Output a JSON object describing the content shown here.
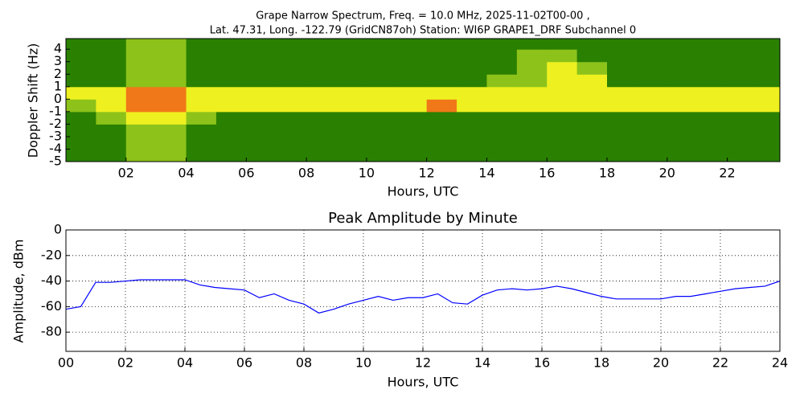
{
  "chart_data": [
    {
      "type": "heatmap",
      "title": [
        "Grape Narrow Spectrum, Freq. = 10.0 MHz, 2025-11-02T00-00 ,",
        "Lat.  47.31, Long. -122.79 (GridCN87oh) Station: WI6P GRAPE1_DRF Subchannel 0"
      ],
      "xlabel": "Hours, UTC",
      "ylabel": "Doppler Shift (Hz)",
      "xlim": [
        0,
        23.75
      ],
      "ylim": [
        -5,
        4.85
      ],
      "xticks": [
        {
          "value": 2,
          "label": "02"
        },
        {
          "value": 4,
          "label": "04"
        },
        {
          "value": 6,
          "label": "06"
        },
        {
          "value": 8,
          "label": "08"
        },
        {
          "value": 10,
          "label": "10"
        },
        {
          "value": 12,
          "label": "12"
        },
        {
          "value": 14,
          "label": "14"
        },
        {
          "value": 16,
          "label": "16"
        },
        {
          "value": 18,
          "label": "18"
        },
        {
          "value": 20,
          "label": "20"
        },
        {
          "value": 22,
          "label": "22"
        }
      ],
      "yticks": [
        -5,
        -4,
        -3,
        -2,
        -1,
        0,
        1,
        2,
        3,
        4
      ],
      "x_bins": [
        0,
        1,
        2,
        3,
        4,
        5,
        6,
        7,
        8,
        9,
        10,
        11,
        12,
        13,
        14,
        15,
        16,
        17,
        18,
        19,
        20,
        21,
        22,
        23,
        24
      ],
      "y_bins": [
        -5,
        -4,
        -3,
        -2,
        -1,
        0,
        1,
        2,
        3,
        4,
        5
      ],
      "colors": [
        "#2a8000",
        "#8cc21a",
        "#eef020",
        "#f07818"
      ],
      "z": [
        [
          0,
          0,
          1,
          1,
          0,
          0,
          0,
          0,
          0,
          0,
          0,
          0,
          0,
          0,
          0,
          0,
          0,
          0,
          0,
          0,
          0,
          0,
          0,
          0
        ],
        [
          0,
          0,
          1,
          1,
          0,
          0,
          0,
          0,
          0,
          0,
          0,
          0,
          0,
          0,
          0,
          0,
          0,
          0,
          0,
          0,
          0,
          0,
          0,
          0
        ],
        [
          0,
          0,
          1,
          1,
          0,
          0,
          0,
          0,
          0,
          0,
          0,
          0,
          0,
          0,
          0,
          0,
          0,
          0,
          0,
          0,
          0,
          0,
          0,
          0
        ],
        [
          0,
          1,
          2,
          2,
          1,
          0,
          0,
          0,
          0,
          0,
          0,
          0,
          0,
          0,
          0,
          0,
          0,
          0,
          0,
          0,
          0,
          0,
          0,
          0
        ],
        [
          1,
          2,
          3,
          3,
          2,
          2,
          2,
          2,
          2,
          2,
          2,
          2,
          3,
          2,
          2,
          2,
          2,
          2,
          2,
          2,
          2,
          2,
          2,
          2
        ],
        [
          2,
          2,
          3,
          3,
          2,
          2,
          2,
          2,
          2,
          2,
          2,
          2,
          2,
          2,
          2,
          2,
          2,
          2,
          2,
          2,
          2,
          2,
          2,
          2
        ],
        [
          0,
          0,
          1,
          1,
          0,
          0,
          0,
          0,
          0,
          0,
          0,
          0,
          0,
          0,
          1,
          1,
          2,
          2,
          0,
          0,
          0,
          0,
          0,
          0
        ],
        [
          0,
          0,
          1,
          1,
          0,
          0,
          0,
          0,
          0,
          0,
          0,
          0,
          0,
          0,
          0,
          1,
          2,
          1,
          0,
          0,
          0,
          0,
          0,
          0
        ],
        [
          0,
          0,
          1,
          1,
          0,
          0,
          0,
          0,
          0,
          0,
          0,
          0,
          0,
          0,
          0,
          1,
          1,
          0,
          0,
          0,
          0,
          0,
          0,
          0
        ],
        [
          0,
          0,
          1,
          1,
          0,
          0,
          0,
          0,
          0,
          0,
          0,
          0,
          0,
          0,
          0,
          0,
          0,
          0,
          0,
          0,
          0,
          0,
          0,
          0
        ]
      ]
    },
    {
      "type": "line",
      "title": "Peak Amplitude by Minute",
      "xlabel": "Hours, UTC",
      "ylabel": "Amplitude, dBm",
      "xlim": [
        0,
        24
      ],
      "ylim": [
        -95,
        0
      ],
      "grid": true,
      "color": "#0000ff",
      "xticks": [
        {
          "value": 0,
          "label": "00"
        },
        {
          "value": 2,
          "label": "02"
        },
        {
          "value": 4,
          "label": "04"
        },
        {
          "value": 6,
          "label": "06"
        },
        {
          "value": 8,
          "label": "08"
        },
        {
          "value": 10,
          "label": "10"
        },
        {
          "value": 12,
          "label": "12"
        },
        {
          "value": 14,
          "label": "14"
        },
        {
          "value": 16,
          "label": "16"
        },
        {
          "value": 18,
          "label": "18"
        },
        {
          "value": 20,
          "label": "20"
        },
        {
          "value": 22,
          "label": "22"
        },
        {
          "value": 24,
          "label": "24"
        }
      ],
      "yticks": [
        -80,
        -60,
        -40,
        -20,
        0
      ],
      "x": [
        0,
        0.5,
        1,
        1.5,
        2,
        2.5,
        3,
        3.5,
        4,
        4.5,
        5,
        5.5,
        6,
        6.5,
        7,
        7.5,
        8,
        8.5,
        9,
        9.5,
        10,
        10.5,
        11,
        11.5,
        12,
        12.5,
        13,
        13.5,
        14,
        14.5,
        15,
        15.5,
        16,
        16.5,
        17,
        17.5,
        18,
        18.5,
        19,
        19.5,
        20,
        20.5,
        21,
        21.5,
        22,
        22.5,
        23,
        23.5,
        24
      ],
      "values": [
        -62,
        -60,
        -41,
        -41,
        -40,
        -39,
        -39,
        -39,
        -39,
        -43,
        -45,
        -46,
        -47,
        -53,
        -50,
        -55,
        -58,
        -65,
        -62,
        -58,
        -55,
        -52,
        -55,
        -53,
        -53,
        -50,
        -57,
        -58,
        -51,
        -47,
        -46,
        -47,
        -46,
        -44,
        -46,
        -49,
        -52,
        -54,
        -54,
        -54,
        -54,
        -52,
        -52,
        -50,
        -48,
        -46,
        -45,
        -44,
        -40
      ]
    }
  ]
}
